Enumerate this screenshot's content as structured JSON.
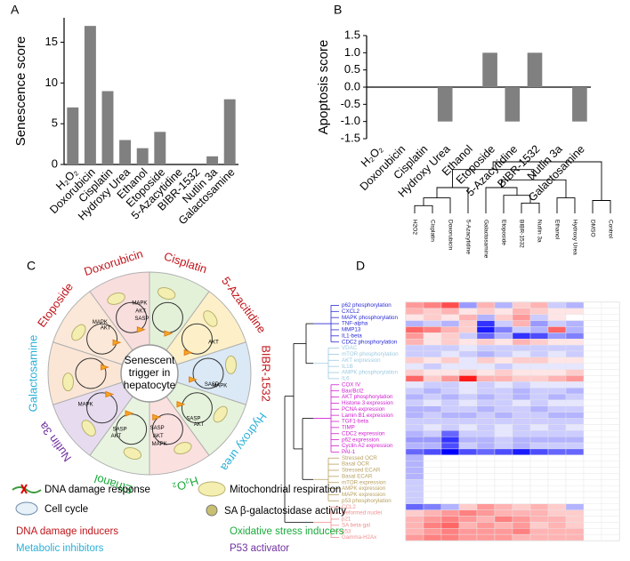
{
  "chart_data": [
    {
      "type": "bar",
      "panel": "A",
      "ylabel": "Senescence score",
      "categories": [
        "H₂O₂",
        "Doxorubicin",
        "Cisplatin",
        "Hydroxy Urea",
        "Ethanol",
        "Etoposide",
        "5-Azacytidine",
        "BIBR-1532",
        "Nutlin 3a",
        "Galactosamine"
      ],
      "values": [
        7,
        17,
        9,
        3,
        2,
        4,
        0,
        0,
        1,
        8
      ],
      "color": "#808080",
      "ylim": [
        0,
        18
      ],
      "yticks": [
        0,
        5,
        10,
        15
      ]
    },
    {
      "type": "bar",
      "panel": "B",
      "ylabel": "Apoptosis score",
      "categories": [
        "H₂O₂",
        "Doxorubicin",
        "Cisplatin",
        "Hydroxy Urea",
        "Ethanol",
        "Etoposide",
        "5-Azacytidine",
        "BIBR-1532",
        "Nutlin 3a",
        "Galactosamine"
      ],
      "values": [
        0,
        0,
        0,
        -1,
        0,
        1,
        -1,
        1,
        0,
        -1
      ],
      "color": "#808080",
      "ylim": [
        -1.5,
        1.5
      ],
      "yticks": [
        -1.5,
        {
          "value": -1,
          "label": "-1.0"
        },
        -0.5,
        {
          "value": 0,
          "label": "0.0"
        },
        0.5,
        {
          "value": 1,
          "label": "1.0"
        },
        1.5
      ]
    },
    {
      "type": "heatmap",
      "panel": "D",
      "columns": [
        "H2O2",
        "Cisplatin",
        "Doxorubicin",
        "5-Azacytidine",
        "Galactosamine",
        "Etoposide",
        "BIBR-1532",
        "Nutlin 3a",
        "Ethanol",
        "Hydroxy Urea",
        "DMSO",
        "Control"
      ],
      "colormap": {
        "low": "#0000ff",
        "mid": "#ffffff",
        "high": "#ff0000"
      },
      "zlim": [
        -1,
        1
      ],
      "row_groups": [
        {
          "color": "#2b2bd6",
          "rows": [
            "p62 phosphorylation",
            "CXCL2",
            "MAPK phosphorylation",
            "TNF-alpha",
            "MMP13",
            "IL1-beta",
            "CDC2 phosphorylation"
          ],
          "values": [
            [
              0.4,
              0.5,
              0.7,
              -0.4,
              0.3,
              -0.3,
              0.2,
              0.3,
              -0.2,
              -0.3,
              0,
              0
            ],
            [
              0.3,
              0.2,
              0.3,
              0.1,
              0.2,
              0.1,
              0.3,
              0.2,
              0.1,
              0.1,
              0,
              0
            ],
            [
              0.1,
              0.2,
              0.1,
              0.3,
              -0.3,
              0.2,
              0.4,
              -0.2,
              0.1,
              0,
              0,
              0
            ],
            [
              -0.3,
              -0.2,
              -0.3,
              0.2,
              -0.8,
              -0.2,
              0.3,
              -0.4,
              -0.2,
              -0.3,
              0,
              0
            ],
            [
              0.6,
              0.5,
              0.3,
              0.2,
              -0.9,
              -0.5,
              -0.2,
              -0.3,
              0.6,
              -0.3,
              0,
              0
            ],
            [
              0.4,
              0.1,
              0.2,
              -0.2,
              -0.6,
              -0.3,
              -0.8,
              -0.7,
              -0.4,
              -0.5,
              0,
              0
            ],
            [
              0.3,
              0.1,
              0.2,
              0.1,
              0.2,
              0.1,
              0.3,
              0.2,
              0.1,
              0.1,
              0,
              0
            ]
          ]
        },
        {
          "color": "#9ecae1",
          "rows": [
            "VDAC",
            "mTOR phosphorylation",
            "AKT expression",
            "IL1B",
            "AMPK phosphorylation",
            "IL6"
          ],
          "values": [
            [
              -0.2,
              -0.2,
              -0.2,
              -0.1,
              -0.2,
              -0.2,
              -0.2,
              -0.2,
              -0.2,
              -0.2,
              0,
              0
            ],
            [
              -0.2,
              -0.2,
              -0.1,
              -0.2,
              -0.3,
              -0.2,
              -0.1,
              -0.2,
              -0.1,
              -0.2,
              0,
              0
            ],
            [
              0.2,
              0.1,
              0.2,
              -0.1,
              0.2,
              0.1,
              0.2,
              0.2,
              0.1,
              0.1,
              0,
              0
            ],
            [
              -0.1,
              -0.2,
              -0.1,
              -0.1,
              -0.1,
              -0.2,
              -0.1,
              -0.1,
              -0.1,
              -0.1,
              0,
              0
            ],
            [
              0.2,
              0.1,
              0.1,
              0.2,
              0.1,
              0.2,
              0.1,
              0.1,
              0.1,
              0.2,
              0,
              0
            ],
            [
              0.6,
              0.2,
              0.4,
              0.9,
              0.3,
              0.3,
              0.2,
              0.2,
              0.3,
              0.4,
              0,
              0
            ]
          ]
        },
        {
          "color": "#d020d0",
          "rows": [
            "COX IV",
            "Bax/Bcl2",
            "AKT phosphorylation",
            "Histone 3 expression",
            "PCNA expression",
            "Lamin B1 expression",
            "TGF1-beta",
            "TIMP",
            "CDC2 expression",
            "p62 expression",
            "Cyclin A2 expression",
            "PAI-1"
          ],
          "values": [
            [
              -0.1,
              -0.2,
              -0.2,
              -0.1,
              -0.2,
              -0.1,
              -0.2,
              -0.1,
              -0.1,
              -0.1,
              0,
              0
            ],
            [
              -0.2,
              -0.3,
              -0.2,
              -0.1,
              -0.2,
              -0.2,
              -0.3,
              -0.2,
              -0.2,
              -0.3,
              0,
              0
            ],
            [
              -0.3,
              -0.2,
              -0.3,
              -0.2,
              -0.3,
              -0.2,
              -0.3,
              -0.2,
              -0.3,
              -0.2,
              0,
              0
            ],
            [
              -0.2,
              -0.1,
              -0.2,
              -0.1,
              -0.2,
              -0.2,
              -0.1,
              -0.2,
              -0.1,
              -0.1,
              0,
              0
            ],
            [
              -0.3,
              -0.3,
              -0.2,
              -0.2,
              -0.3,
              -0.2,
              -0.2,
              -0.3,
              -0.2,
              -0.2,
              0,
              0
            ],
            [
              -0.3,
              -0.2,
              -0.3,
              -0.3,
              -0.2,
              -0.3,
              -0.2,
              -0.2,
              -0.3,
              -0.3,
              0,
              0
            ],
            [
              -0.2,
              -0.2,
              -0.2,
              -0.2,
              -0.2,
              -0.2,
              -0.2,
              -0.2,
              -0.2,
              -0.2,
              0,
              0
            ],
            [
              -0.2,
              -0.1,
              -0.2,
              -0.1,
              -0.2,
              -0.1,
              -0.2,
              -0.1,
              -0.2,
              -0.1,
              0,
              0
            ],
            [
              -0.3,
              -0.2,
              -0.6,
              -0.2,
              -0.2,
              -0.1,
              -0.2,
              -0.2,
              -0.2,
              -0.2,
              0,
              0
            ],
            [
              -0.4,
              -0.4,
              -0.8,
              -0.3,
              -0.3,
              -0.2,
              -0.3,
              -0.3,
              -0.3,
              -0.3,
              0,
              0
            ],
            [
              -0.3,
              -0.3,
              -0.7,
              -0.2,
              -0.3,
              -0.2,
              -0.3,
              -0.2,
              -0.2,
              -0.2,
              0,
              0
            ],
            [
              -0.6,
              -0.7,
              -1,
              -0.7,
              -0.6,
              -0.7,
              -0.9,
              -0.7,
              -0.6,
              -0.6,
              0,
              0
            ]
          ]
        },
        {
          "color": "#b8a060",
          "rows": [
            "Stressed OCR",
            "Basal OCR",
            "Stressed ECAR",
            "Basal ECAR",
            "mTOR expression",
            "AMPK expression",
            "MAPK expression",
            "p53 phosphorylation"
          ],
          "values": [
            [
              -0.3,
              0,
              0,
              0,
              0,
              0,
              0,
              0,
              0,
              0,
              0,
              0
            ],
            [
              -0.3,
              0,
              0,
              0,
              0,
              0,
              0,
              0,
              0,
              0,
              0,
              0
            ],
            [
              -0.3,
              0,
              0,
              0,
              0,
              0,
              0,
              0,
              0,
              0,
              0,
              0
            ],
            [
              -0.3,
              0,
              0,
              0,
              0,
              0,
              0,
              0,
              0,
              0,
              0,
              0
            ],
            [
              -0.2,
              0,
              0,
              0,
              0,
              0,
              0,
              0,
              0,
              0,
              0,
              0
            ],
            [
              -0.2,
              0,
              0,
              0,
              0,
              0,
              0,
              0,
              0,
              0,
              0,
              0
            ],
            [
              -0.2,
              0,
              0,
              0,
              0,
              0,
              0,
              0,
              0,
              0,
              0,
              0
            ],
            [
              -0.2,
              0,
              0,
              0,
              0,
              0,
              0,
              0,
              0,
              0,
              0,
              0
            ]
          ]
        },
        {
          "color": "#f08f8f",
          "rows": [
            "CCL2",
            "Deformed nuclei",
            "p21",
            "SA beta-gal",
            "p53",
            "Gamma-H2Ax"
          ],
          "values": [
            [
              -0.6,
              -0.5,
              -0.3,
              0.2,
              0.4,
              0.3,
              0.2,
              0.3,
              0.2,
              -0.3,
              0,
              0
            ],
            [
              0.2,
              0.3,
              0.4,
              0.5,
              0.4,
              0.3,
              0.3,
              0.3,
              0.2,
              0.2,
              0,
              0
            ],
            [
              0.3,
              0.4,
              0.5,
              0.4,
              0.3,
              0.5,
              0.4,
              0.3,
              0.3,
              0.2,
              0,
              0
            ],
            [
              0.3,
              0.5,
              0.6,
              0.3,
              0.4,
              0.3,
              0.4,
              0.2,
              0.3,
              0.2,
              0,
              0
            ],
            [
              0.3,
              0.4,
              0.5,
              0.4,
              0.4,
              0.4,
              0.5,
              0.3,
              0.3,
              0.3,
              0,
              0
            ],
            [
              0.4,
              0.5,
              0.5,
              0.4,
              0.4,
              0.4,
              0.3,
              0.3,
              0.3,
              0.3,
              0,
              0
            ]
          ]
        }
      ]
    }
  ],
  "panel_c": {
    "label": "C",
    "center": [
      "Senescent",
      "trigger in",
      "hepatocyte"
    ],
    "segments": [
      {
        "name": "Cisplatin",
        "color": "#c0151b",
        "fill": "#e3f1d8",
        "markers": []
      },
      {
        "name": "5-Azacitidine",
        "color": "#c0151b",
        "fill": "#fdf0c8",
        "markers": [
          "AKT"
        ]
      },
      {
        "name": "BIBR-1532",
        "color": "#c0151b",
        "fill": "#dbe9f6",
        "markers": [
          "MAPK",
          "SASP"
        ]
      },
      {
        "name": "Hydroxy urea",
        "color": "#2ab0d8",
        "fill": "#e6f3dc",
        "markers": [
          "AKT",
          "SASP"
        ]
      },
      {
        "name": "H₂O₂",
        "color": "#1aaa3a",
        "fill": "#fbe0e0",
        "markers": [
          "MAPK",
          "AKT",
          "SASP"
        ]
      },
      {
        "name": "Ethanol",
        "color": "#1aaa3a",
        "fill": "#e8f4e0",
        "markers": [
          "AKT",
          "SASP"
        ]
      },
      {
        "name": "Nutlin 3a",
        "color": "#7030a0",
        "fill": "#e7dcef",
        "markers": [
          "MAPK"
        ]
      },
      {
        "name": "Galactosamine",
        "color": "#2ab0d8",
        "fill": "#fbe6d6",
        "markers": []
      },
      {
        "name": "Etoposide",
        "color": "#c0151b",
        "fill": "#fbe8d8",
        "markers": [
          "MAPK",
          "AKT"
        ]
      },
      {
        "name": "Doxorubicin",
        "color": "#c0151b",
        "fill": "#f9dede",
        "markers": [
          "MAPK",
          "AKT",
          "SASP"
        ]
      }
    ],
    "legend": {
      "icons": [
        "DNA damage response",
        "Mitochondrial respiration",
        "Cell cycle",
        "SA β-galactosidase activity"
      ],
      "classes": [
        {
          "text": "DNA damage inducers",
          "color": "#c0151b"
        },
        {
          "text": "Oxidative stress inducers",
          "color": "#1aaa3a"
        },
        {
          "text": "Metabolic inhibitors",
          "color": "#2ab0d8"
        },
        {
          "text": "P53 activator",
          "color": "#7030a0"
        }
      ]
    }
  }
}
